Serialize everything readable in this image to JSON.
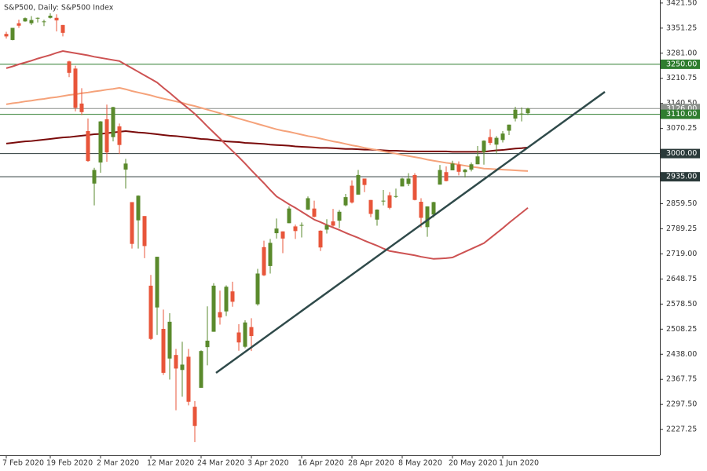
{
  "chart_data": {
    "type": "candlestick",
    "title": "S&P500, Daily:  S&P500 Index",
    "categories": [
      "7 Feb 2020",
      null,
      null,
      null,
      null,
      null,
      null,
      "19 Feb 2020",
      null,
      null,
      null,
      null,
      null,
      null,
      null,
      "2 Mar 2020",
      null,
      null,
      null,
      null,
      null,
      null,
      null,
      "12 Mar 2020",
      null,
      null,
      null,
      null,
      null,
      null,
      null,
      "24 Mar 2020",
      null,
      null,
      null,
      null,
      null,
      null,
      null,
      "3 Apr 2020",
      null,
      null,
      null,
      null,
      null,
      null,
      null,
      "16 Apr 2020",
      null,
      null,
      null,
      null,
      null,
      null,
      null,
      "28 Apr 2020",
      null,
      null,
      null,
      null,
      null,
      null,
      null,
      "8 May 2020",
      null,
      null,
      null,
      null,
      null,
      null,
      null,
      "20 May 2020",
      null,
      null,
      null,
      null,
      null,
      null,
      null,
      "1 Jun 2020",
      null,
      null,
      null,
      null
    ],
    "open": [
      3335,
      3318,
      3365,
      3370,
      3365,
      3379,
      3369,
      3380,
      3380,
      3360,
      3258,
      3238,
      3140,
      3063,
      2916,
      2975,
      3096,
      3046,
      3076,
      2955,
      2864,
      2813,
      2825,
      2630,
      2569,
      2509,
      2426,
      2436,
      2394,
      2431,
      2291,
      2344,
      2458,
      2501,
      2556,
      2558,
      2614,
      2499,
      2459,
      2514,
      2578,
      2738,
      2685,
      2777,
      2782,
      2805,
      2796,
      2799,
      2843,
      2846,
      2784,
      2787,
      2810,
      2812,
      2855,
      2910,
      2885,
      2930,
      2870,
      2815,
      2868,
      2883,
      2879,
      2908,
      2915,
      2940,
      2865,
      2794,
      2829,
      2913,
      2948,
      2953,
      2969,
      2948,
      2955,
      2970,
      3004,
      3046,
      3025,
      3038,
      3064,
      3098,
      3112,
      3113
    ],
    "high": [
      3341,
      3352,
      3375,
      3381,
      3385,
      3381,
      3375,
      3393,
      3390,
      3360,
      3260,
      3246,
      3183,
      3098,
      2960,
      3091,
      3137,
      3131,
      3084,
      2985,
      2864,
      2883,
      2825,
      2660,
      2711,
      2563,
      2553,
      2453,
      2473,
      2453,
      2307,
      2449,
      2572,
      2637,
      2616,
      2631,
      2641,
      2522,
      2533,
      2539,
      2677,
      2756,
      2761,
      2818,
      2782,
      2852,
      2801,
      2807,
      2880,
      2868,
      2785,
      2816,
      2845,
      2842,
      2887,
      2925,
      2954,
      2930,
      2870,
      2844,
      2898,
      2892,
      2902,
      2932,
      2945,
      2945,
      2875,
      2852,
      2865,
      2968,
      2964,
      2980,
      2978,
      2957,
      2975,
      3021,
      3037,
      3068,
      3049,
      3063,
      3081,
      3131,
      3129,
      3128
    ],
    "low": [
      3322,
      3317,
      3352,
      3369,
      3360,
      3367,
      3357,
      3378,
      3342,
      3328,
      3214,
      3118,
      3108,
      2977,
      2855,
      2946,
      2977,
      3034,
      2999,
      2902,
      2734,
      2734,
      2707,
      2478,
      2492,
      2380,
      2367,
      2281,
      2319,
      2295,
      2192,
      2344,
      2407,
      2501,
      2521,
      2545,
      2571,
      2448,
      2455,
      2447,
      2574,
      2657,
      2664,
      2762,
      2721,
      2805,
      2761,
      2765,
      2842,
      2821,
      2727,
      2776,
      2794,
      2791,
      2852,
      2860,
      2885,
      2892,
      2822,
      2798,
      2855,
      2844,
      2876,
      2908,
      2909,
      2869,
      2793,
      2767,
      2821,
      2913,
      2922,
      2953,
      2939,
      2933,
      2950,
      2970,
      2969,
      3024,
      2999,
      3031,
      3052,
      3090,
      3090,
      3108
    ],
    "close": [
      3328,
      3352,
      3358,
      3379,
      3374,
      3380,
      3370,
      3386,
      3373,
      3338,
      3226,
      3128,
      3116,
      2979,
      2954,
      3090,
      3003,
      3130,
      3024,
      2972,
      2747,
      2882,
      2741,
      2481,
      2711,
      2386,
      2529,
      2398,
      2409,
      2305,
      2237,
      2447,
      2476,
      2630,
      2541,
      2627,
      2585,
      2471,
      2527,
      2489,
      2664,
      2659,
      2750,
      2790,
      2762,
      2846,
      2783,
      2800,
      2875,
      2823,
      2737,
      2799,
      2798,
      2837,
      2878,
      2863,
      2940,
      2912,
      2831,
      2843,
      2868,
      2848,
      2881,
      2930,
      2930,
      2870,
      2820,
      2852,
      2864,
      2954,
      2923,
      2972,
      2949,
      2955,
      2970,
      2992,
      3036,
      3030,
      3044,
      3056,
      3081,
      3123,
      3112,
      3126
    ],
    "up_color": "#5a8a2c",
    "down_color": "#e8553a",
    "lines": [
      {
        "color": "#7a0a0a",
        "values": [
          3028,
          3030,
          3032,
          3034,
          3035,
          3037,
          3039,
          3041,
          3043,
          3045,
          3046,
          3048,
          3050,
          3052,
          3054,
          3055,
          3057,
          3059,
          3061,
          3063,
          3061,
          3059,
          3058,
          3056,
          3054,
          3052,
          3050,
          3049,
          3047,
          3045,
          3043,
          3041,
          3040,
          3038,
          3036,
          3034,
          3033,
          3032,
          3030,
          3029,
          3028,
          3027,
          3025,
          3024,
          3023,
          3022,
          3020,
          3019,
          3018,
          3017,
          3016,
          3016,
          3015,
          3014,
          3013,
          3013,
          3012,
          3011,
          3011,
          3010,
          3009,
          3008,
          3008,
          3007,
          3006,
          3006,
          3006,
          3006,
          3006,
          3006,
          3006,
          3005,
          3005,
          3005,
          3005,
          3005,
          3005,
          3007,
          3009,
          3010,
          3012,
          3014,
          3015,
          3017
        ]
      },
      {
        "color": "#f5a27a",
        "values": [
          3138,
          3141,
          3143,
          3146,
          3148,
          3151,
          3153,
          3156,
          3158,
          3161,
          3164,
          3166,
          3169,
          3171,
          3174,
          3176,
          3179,
          3181,
          3184,
          3180,
          3175,
          3171,
          3167,
          3163,
          3158,
          3154,
          3150,
          3146,
          3142,
          3137,
          3133,
          3128,
          3123,
          3118,
          3113,
          3108,
          3103,
          3098,
          3093,
          3088,
          3083,
          3078,
          3073,
          3068,
          3064,
          3061,
          3057,
          3053,
          3049,
          3046,
          3042,
          3038,
          3034,
          3031,
          3027,
          3023,
          3020,
          3016,
          3013,
          3010,
          3006,
          3003,
          3000,
          2996,
          2993,
          2990,
          2987,
          2983,
          2980,
          2977,
          2974,
          2972,
          2969,
          2966,
          2963,
          2961,
          2958,
          2957,
          2956,
          2955,
          2954,
          2953,
          2952,
          2951
        ]
      },
      {
        "color": "#cd5252",
        "values": [
          3239,
          3244,
          3250,
          3255,
          3260,
          3266,
          3271,
          3276,
          3282,
          3287,
          3284,
          3281,
          3278,
          3275,
          3271,
          3268,
          3265,
          3262,
          3259,
          3249,
          3239,
          3229,
          3219,
          3209,
          3199,
          3184,
          3170,
          3155,
          3140,
          3126,
          3111,
          3094,
          3076,
          3059,
          3042,
          3024,
          3007,
          2990,
          2972,
          2953,
          2935,
          2917,
          2898,
          2880,
          2869,
          2858,
          2848,
          2837,
          2826,
          2815,
          2808,
          2800,
          2793,
          2786,
          2778,
          2771,
          2764,
          2756,
          2749,
          2742,
          2734,
          2727,
          2724,
          2721,
          2718,
          2715,
          2711,
          2708,
          2705,
          2706,
          2707,
          2709,
          2717,
          2725,
          2733,
          2741,
          2749,
          2763,
          2777,
          2791,
          2806,
          2820,
          2834,
          2848
        ]
      }
    ],
    "levels": [
      {
        "value": 3250,
        "label": "3250.00",
        "color": "#2f7d2f"
      },
      {
        "value": 3126,
        "label": "3126.00",
        "color": "#8a8f8a"
      },
      {
        "value": 3110,
        "label": "3110.00",
        "color": "#2f7d2f"
      },
      {
        "value": 3000,
        "label": "3000.00",
        "color": "#2b3a3a"
      },
      {
        "value": 2935,
        "label": "2935.00",
        "color": "#2b3a3a"
      }
    ],
    "ylim": [
      2155,
      3430
    ],
    "yticks": [
      {
        "value": 3421.5,
        "label": "3421.50"
      },
      {
        "value": 3351.25,
        "label": "3351.25"
      },
      {
        "value": 3281,
        "label": "3281.00"
      },
      {
        "value": 3210.75,
        "label": "3210.75"
      },
      {
        "value": 3140.5,
        "label": "3140.50"
      },
      {
        "value": 3070.25,
        "label": "3070.25"
      },
      {
        "value": 2859.5,
        "label": "2859.50"
      },
      {
        "value": 2789.25,
        "label": "2789.25"
      },
      {
        "value": 2719,
        "label": "2719.00"
      },
      {
        "value": 2648.75,
        "label": "2648.75"
      },
      {
        "value": 2578.5,
        "label": "2578.50"
      },
      {
        "value": 2508.25,
        "label": "2508.25"
      },
      {
        "value": 2438,
        "label": "2438.00"
      },
      {
        "value": 2367.75,
        "label": "2367.75"
      },
      {
        "value": 2297.5,
        "label": "2297.50"
      },
      {
        "value": 2227.25,
        "label": "2227.25"
      }
    ]
  }
}
